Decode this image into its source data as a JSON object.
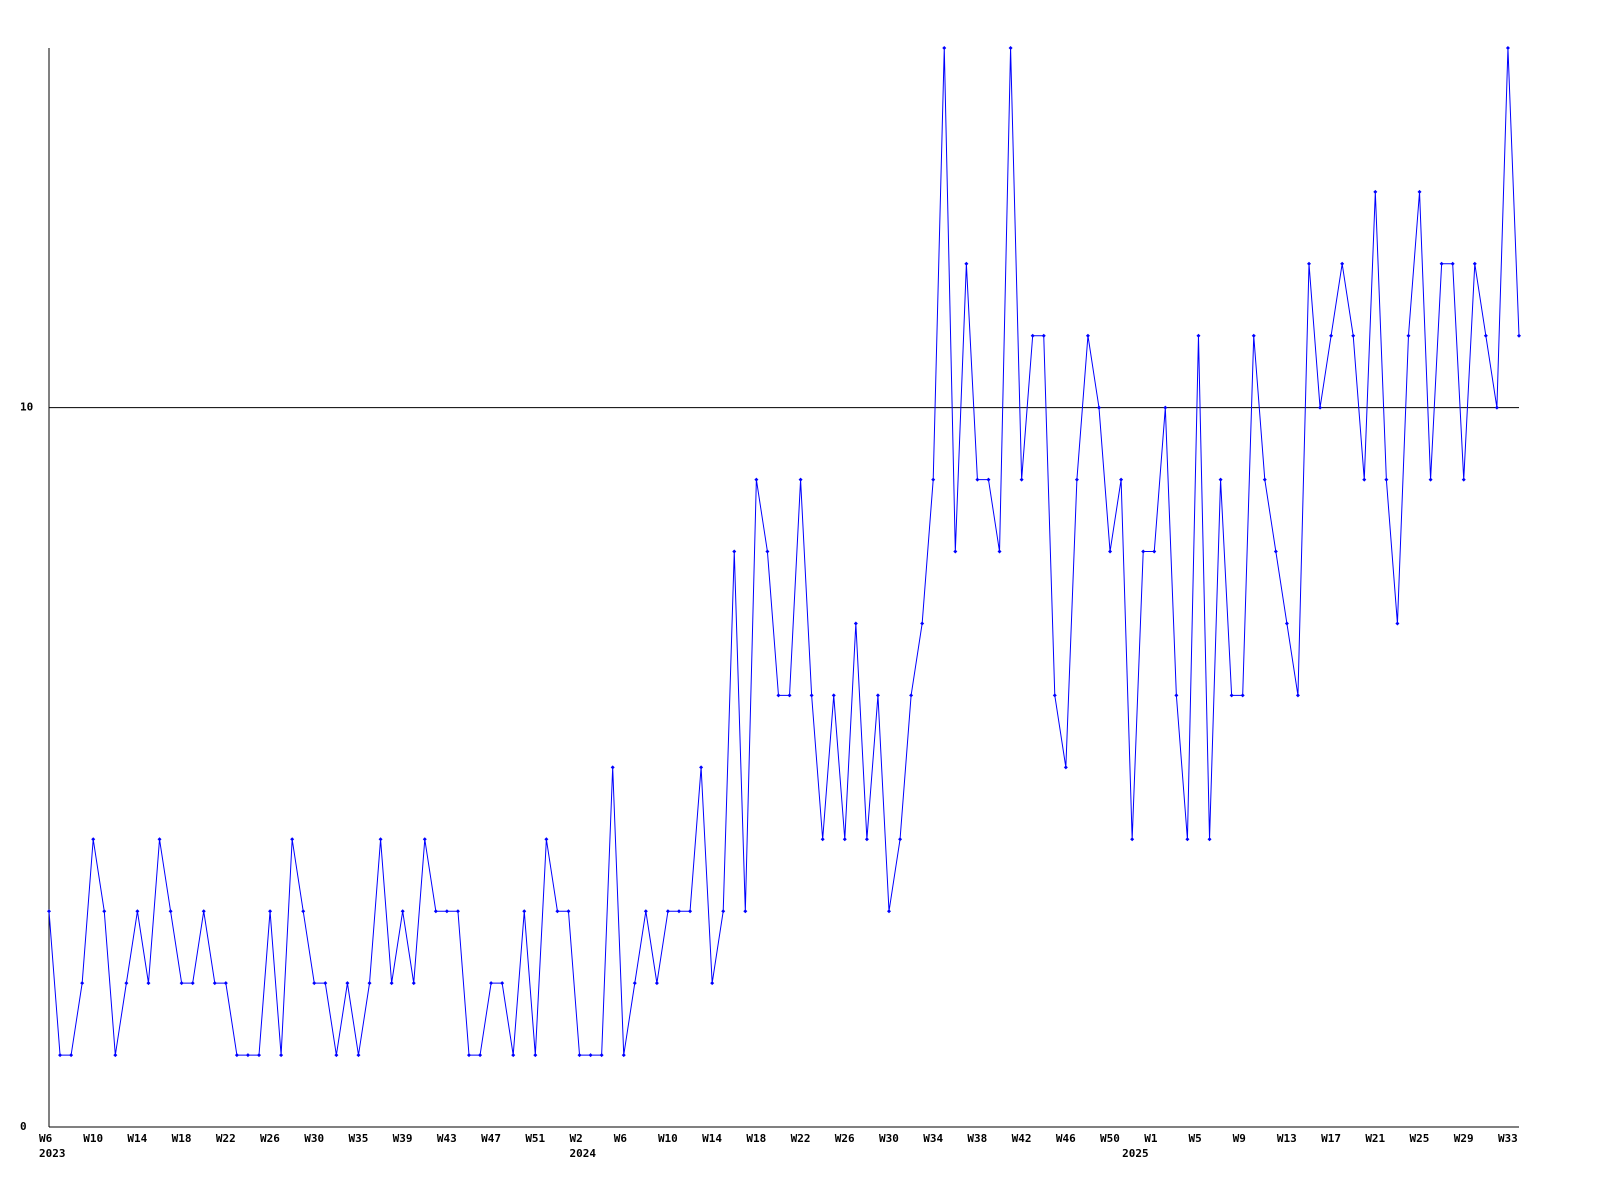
{
  "chart_data": {
    "type": "line",
    "color": "#0000ff",
    "grid": true,
    "ylim": [
      0,
      15
    ],
    "yticks": [
      0,
      10
    ],
    "categories": [
      "W6",
      null,
      null,
      null,
      "W10",
      null,
      null,
      null,
      "W14",
      null,
      null,
      null,
      "W18",
      null,
      null,
      null,
      "W22",
      null,
      null,
      null,
      "W26",
      null,
      null,
      null,
      "W30",
      null,
      null,
      null,
      "W35",
      null,
      null,
      null,
      "W39",
      null,
      null,
      null,
      "W43",
      null,
      null,
      null,
      "W47",
      null,
      null,
      null,
      "W51",
      null,
      null,
      null,
      "W2",
      null,
      null,
      null,
      "W6",
      null,
      null,
      null,
      "W10",
      null,
      null,
      null,
      "W14",
      null,
      null,
      null,
      "W18",
      null,
      null,
      null,
      "W22",
      null,
      null,
      null,
      "W26",
      null,
      null,
      null,
      "W30",
      null,
      null,
      null,
      "W34",
      null,
      null,
      null,
      "W38",
      null,
      null,
      null,
      "W42",
      null,
      null,
      null,
      "W46",
      null,
      null,
      null,
      "W50",
      null,
      null,
      null,
      "W1",
      null,
      null,
      null,
      "W5",
      null,
      null,
      null,
      "W9",
      null,
      null,
      null,
      "W13",
      null,
      null,
      null,
      "W17",
      null,
      null,
      null,
      "W21",
      null,
      null,
      null,
      "W25",
      null,
      null,
      null,
      "W29",
      null,
      null,
      null,
      "W33",
      null
    ],
    "year_labels": [
      "2023",
      null,
      null,
      null,
      null,
      null,
      null,
      null,
      null,
      null,
      null,
      null,
      null,
      null,
      null,
      null,
      null,
      null,
      null,
      null,
      null,
      null,
      null,
      null,
      null,
      null,
      null,
      null,
      null,
      null,
      null,
      null,
      null,
      null,
      null,
      null,
      null,
      null,
      null,
      null,
      null,
      null,
      null,
      null,
      null,
      null,
      null,
      null,
      "2024",
      null,
      null,
      null,
      null,
      null,
      null,
      null,
      null,
      null,
      null,
      null,
      null,
      null,
      null,
      null,
      null,
      null,
      null,
      null,
      null,
      null,
      null,
      null,
      null,
      null,
      null,
      null,
      null,
      null,
      null,
      null,
      null,
      null,
      null,
      null,
      null,
      null,
      null,
      null,
      null,
      null,
      null,
      null,
      null,
      null,
      null,
      null,
      null,
      null,
      "2025",
      null,
      null,
      null,
      null,
      null,
      null,
      null,
      null,
      null,
      null,
      null,
      null,
      null,
      null,
      null,
      null,
      null,
      null,
      null,
      null,
      null,
      null,
      null,
      null,
      null,
      null,
      null,
      null,
      null,
      null,
      null,
      null,
      null
    ],
    "values": [
      3,
      1,
      1,
      2,
      4,
      3,
      1,
      2,
      3,
      2,
      4,
      3,
      2,
      2,
      3,
      2,
      2,
      1,
      1,
      1,
      3,
      1,
      4,
      3,
      2,
      2,
      1,
      2,
      1,
      2,
      4,
      2,
      3,
      2,
      4,
      3,
      3,
      3,
      1,
      1,
      2,
      2,
      1,
      3,
      1,
      4,
      3,
      3,
      1,
      1,
      1,
      5,
      1,
      2,
      3,
      2,
      3,
      3,
      3,
      5,
      2,
      3,
      8,
      3,
      9,
      8,
      6,
      6,
      9,
      6,
      4,
      6,
      4,
      7,
      4,
      6,
      3,
      4,
      6,
      7,
      9,
      15,
      8,
      12,
      9,
      9,
      8,
      15,
      9,
      11,
      11,
      6,
      5,
      9,
      11,
      10,
      8,
      9,
      4,
      8,
      8,
      10,
      6,
      4,
      11,
      4,
      9,
      6,
      6,
      11,
      9,
      8,
      7,
      6,
      12,
      10,
      11,
      12,
      11,
      9,
      13,
      9,
      7,
      11,
      13,
      9,
      12,
      12,
      9,
      12,
      11,
      10,
      15,
      11
    ]
  }
}
